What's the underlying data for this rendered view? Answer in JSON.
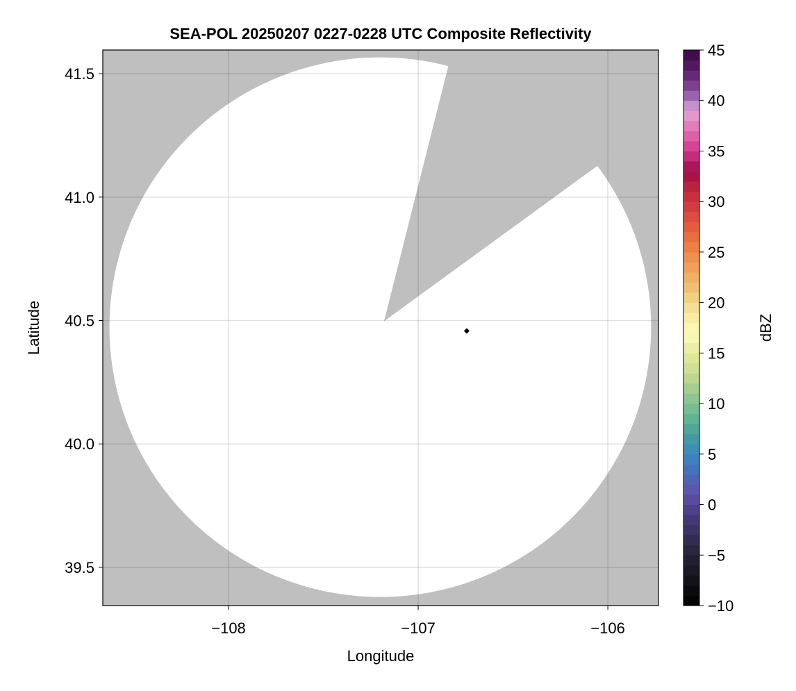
{
  "chart_data": {
    "type": "heatmap",
    "title": "SEA-POL 20250207 0227-0228 UTC Composite Reflectivity",
    "xlabel": "Longitude",
    "ylabel": "Latitude",
    "xlim": [
      -108.663,
      -105.733
    ],
    "ylim": [
      39.345,
      41.596
    ],
    "xticks": [
      -108,
      -107,
      -106
    ],
    "xtick_labels": [
      "−108",
      "−107",
      "−106"
    ],
    "yticks": [
      39.5,
      40.0,
      40.5,
      41.0,
      41.5
    ],
    "ytick_labels": [
      "39.5",
      "40.0",
      "40.5",
      "41.0",
      "41.5"
    ],
    "grid": true,
    "background_color": "#bfbfbf",
    "no_echo_color": "#ffffff",
    "radar": {
      "center_lon": -107.2,
      "center_lat": 40.473,
      "range_lon_deg": 1.428,
      "range_lat_deg": 1.093,
      "apex_lon": -107.18,
      "apex_lat": 40.497,
      "blocked_sector_edge1": [
        -106.843,
        41.525
      ],
      "blocked_sector_edge2": [
        -106.067,
        41.12
      ]
    },
    "marker": {
      "lon": -106.744,
      "lat": 40.458,
      "shape": "diamond",
      "color": "#000000"
    },
    "colorbar": {
      "label": "dBZ",
      "range": [
        -10,
        45
      ],
      "step": 1,
      "ticks": [
        -10,
        -5,
        0,
        5,
        10,
        15,
        20,
        25,
        30,
        35,
        40,
        45
      ],
      "tick_labels": [
        "−10",
        "−5",
        "0",
        "5",
        "10",
        "15",
        "20",
        "25",
        "30",
        "35",
        "40",
        "45"
      ],
      "color_stops": [
        [
          -10,
          "#000000"
        ],
        [
          -7,
          "#16161e"
        ],
        [
          -5,
          "#262236"
        ],
        [
          -3,
          "#363056"
        ],
        [
          -1,
          "#4a3a80"
        ],
        [
          1,
          "#6050a8"
        ],
        [
          3,
          "#4a6ab8"
        ],
        [
          5,
          "#3a88c0"
        ],
        [
          7,
          "#46a09a"
        ],
        [
          9,
          "#6cb892"
        ],
        [
          11,
          "#98c890"
        ],
        [
          13,
          "#c6dc90"
        ],
        [
          15,
          "#e2ea9c"
        ],
        [
          17,
          "#fcfcb8"
        ],
        [
          19,
          "#f6e6a0"
        ],
        [
          21,
          "#f0c878"
        ],
        [
          23,
          "#f0a860"
        ],
        [
          25,
          "#f08848"
        ],
        [
          27,
          "#e86440"
        ],
        [
          29,
          "#d84440"
        ],
        [
          31,
          "#c02a3c"
        ],
        [
          33,
          "#a00c4a"
        ],
        [
          35,
          "#d0388a"
        ],
        [
          37,
          "#e070b0"
        ],
        [
          39,
          "#e4a4d4"
        ],
        [
          40,
          "#a87bbf"
        ],
        [
          41,
          "#8a4a9c"
        ],
        [
          43,
          "#5a1d6a"
        ],
        [
          45,
          "#3a0846"
        ]
      ]
    }
  }
}
